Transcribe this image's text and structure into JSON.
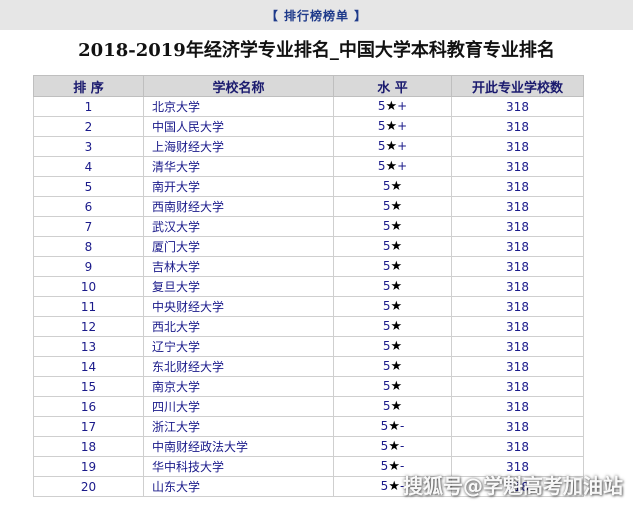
{
  "topbar": {
    "label": "【 排行榜榜单 】"
  },
  "title": "2018-2019年经济学专业排名_中国大学本科教育专业排名",
  "table": {
    "headers": [
      "排 序",
      "学校名称",
      "水 平",
      "开此专业学校数"
    ],
    "rows": [
      {
        "rank": "1",
        "school": "北京大学",
        "level_num": "5",
        "level_suffix": "+",
        "count": "318"
      },
      {
        "rank": "2",
        "school": "中国人民大学",
        "level_num": "5",
        "level_suffix": "+",
        "count": "318"
      },
      {
        "rank": "3",
        "school": "上海财经大学",
        "level_num": "5",
        "level_suffix": "+",
        "count": "318"
      },
      {
        "rank": "4",
        "school": "清华大学",
        "level_num": "5",
        "level_suffix": "+",
        "count": "318"
      },
      {
        "rank": "5",
        "school": "南开大学",
        "level_num": "5",
        "level_suffix": "",
        "count": "318"
      },
      {
        "rank": "6",
        "school": "西南财经大学",
        "level_num": "5",
        "level_suffix": "",
        "count": "318"
      },
      {
        "rank": "7",
        "school": "武汉大学",
        "level_num": "5",
        "level_suffix": "",
        "count": "318"
      },
      {
        "rank": "8",
        "school": "厦门大学",
        "level_num": "5",
        "level_suffix": "",
        "count": "318"
      },
      {
        "rank": "9",
        "school": "吉林大学",
        "level_num": "5",
        "level_suffix": "",
        "count": "318"
      },
      {
        "rank": "10",
        "school": "复旦大学",
        "level_num": "5",
        "level_suffix": "",
        "count": "318"
      },
      {
        "rank": "11",
        "school": "中央财经大学",
        "level_num": "5",
        "level_suffix": "",
        "count": "318"
      },
      {
        "rank": "12",
        "school": "西北大学",
        "level_num": "5",
        "level_suffix": "",
        "count": "318"
      },
      {
        "rank": "13",
        "school": "辽宁大学",
        "level_num": "5",
        "level_suffix": "",
        "count": "318"
      },
      {
        "rank": "14",
        "school": "东北财经大学",
        "level_num": "5",
        "level_suffix": "",
        "count": "318"
      },
      {
        "rank": "15",
        "school": "南京大学",
        "level_num": "5",
        "level_suffix": "",
        "count": "318"
      },
      {
        "rank": "16",
        "school": "四川大学",
        "level_num": "5",
        "level_suffix": "",
        "count": "318"
      },
      {
        "rank": "17",
        "school": "浙江大学",
        "level_num": "5",
        "level_suffix": "-",
        "count": "318"
      },
      {
        "rank": "18",
        "school": "中南财经政法大学",
        "level_num": "5",
        "level_suffix": "-",
        "count": "318"
      },
      {
        "rank": "19",
        "school": "华中科技大学",
        "level_num": "5",
        "level_suffix": "-",
        "count": "318"
      },
      {
        "rank": "20",
        "school": "山东大学",
        "level_num": "5",
        "level_suffix": "-",
        "count": "318"
      }
    ]
  },
  "star_glyph": "★",
  "watermark": "搜狐号@学魁高考加油站"
}
